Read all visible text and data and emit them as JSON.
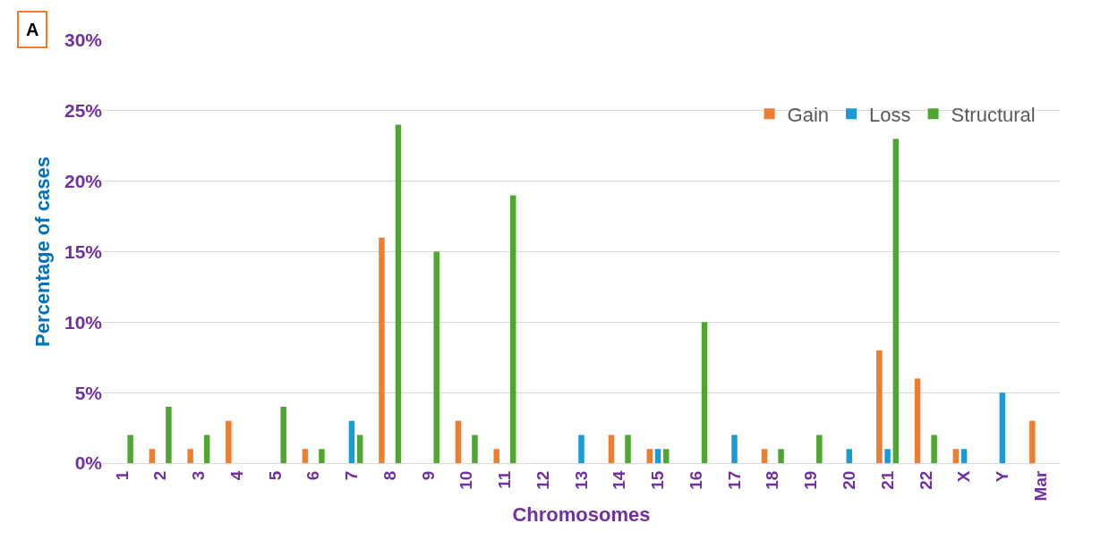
{
  "chart_data": {
    "type": "bar",
    "xlabel": "Chromosomes",
    "ylabel": "Percentage of cases",
    "annotations": [
      "A"
    ],
    "categories": [
      "1",
      "2",
      "3",
      "4",
      "5",
      "6",
      "7",
      "8",
      "9",
      "10",
      "11",
      "12",
      "13",
      "14",
      "15",
      "16",
      "17",
      "18",
      "19",
      "20",
      "21",
      "22",
      "X",
      "Y",
      "Mar"
    ],
    "series": [
      {
        "name": "Gain",
        "color": "#ed7d31",
        "values": [
          0,
          1,
          1,
          3,
          0,
          1,
          0,
          16,
          0,
          3,
          1,
          0,
          0,
          2,
          1,
          0,
          0,
          1,
          0,
          0,
          8,
          6,
          1,
          0,
          3
        ]
      },
      {
        "name": "Loss",
        "color": "#1a9bd7",
        "values": [
          0,
          0,
          0,
          0,
          0,
          0,
          3,
          0,
          0,
          0,
          0,
          0,
          2,
          0,
          1,
          0,
          2,
          0,
          0,
          1,
          1,
          0,
          1,
          5,
          0
        ]
      },
      {
        "name": "Structural",
        "color": "#4ea72e",
        "values": [
          2,
          4,
          2,
          0,
          4,
          1,
          2,
          24,
          15,
          2,
          19,
          0,
          0,
          2,
          1,
          10,
          0,
          1,
          2,
          0,
          23,
          2,
          0,
          0,
          0
        ]
      }
    ],
    "ylim": [
      0,
      30
    ],
    "yticks": [
      {
        "value": 0,
        "label": "0%"
      },
      {
        "value": 5,
        "label": "5%"
      },
      {
        "value": 10,
        "label": "10%"
      },
      {
        "value": 15,
        "label": "15%"
      },
      {
        "value": 20,
        "label": "20%"
      },
      {
        "value": 25,
        "label": "25%"
      },
      {
        "value": 30,
        "label": "30%"
      }
    ],
    "grid": "y",
    "legend": "top right"
  }
}
